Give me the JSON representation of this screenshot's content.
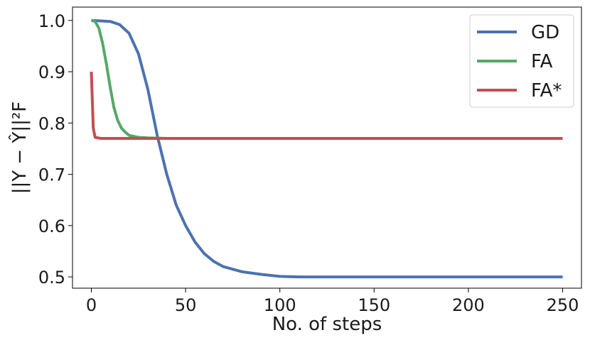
{
  "chart_data": {
    "type": "line",
    "title": "",
    "xlabel": "No. of steps",
    "ylabel": "||Y − Ŷ||²F",
    "xlim": [
      -10,
      260
    ],
    "ylim": [
      0.478,
      1.026
    ],
    "xticks": [
      0,
      50,
      100,
      150,
      200,
      250
    ],
    "yticks": [
      0.5,
      0.6,
      0.7,
      0.8,
      0.9,
      1.0
    ],
    "xtick_labels": [
      "0",
      "50",
      "100",
      "150",
      "200",
      "250"
    ],
    "ytick_labels": [
      "0.5",
      "0.6",
      "0.7",
      "0.8",
      "0.9",
      "1.0"
    ],
    "grid": false,
    "legend_position": "top-right",
    "series": [
      {
        "name": "GD",
        "color": "#4c72b0",
        "x": [
          0,
          10,
          15,
          20,
          25,
          30,
          35,
          40,
          45,
          50,
          55,
          60,
          65,
          70,
          80,
          90,
          100,
          110,
          120,
          150,
          200,
          250
        ],
        "y": [
          1.0,
          0.998,
          0.992,
          0.975,
          0.935,
          0.865,
          0.775,
          0.7,
          0.64,
          0.6,
          0.568,
          0.545,
          0.53,
          0.52,
          0.51,
          0.505,
          0.501,
          0.5,
          0.5,
          0.5,
          0.5,
          0.5
        ]
      },
      {
        "name": "FA",
        "color": "#55a868",
        "x": [
          0,
          2,
          4,
          6,
          8,
          10,
          12,
          14,
          16,
          18,
          20,
          25,
          30,
          40,
          100,
          250
        ],
        "y": [
          1.0,
          0.998,
          0.985,
          0.955,
          0.915,
          0.87,
          0.83,
          0.805,
          0.79,
          0.782,
          0.776,
          0.772,
          0.771,
          0.77,
          0.77,
          0.77
        ]
      },
      {
        "name": "FA*",
        "color": "#c44e52",
        "x": [
          0,
          1,
          2,
          5,
          100,
          250
        ],
        "y": [
          0.9,
          0.79,
          0.772,
          0.77,
          0.77,
          0.77
        ]
      }
    ]
  }
}
